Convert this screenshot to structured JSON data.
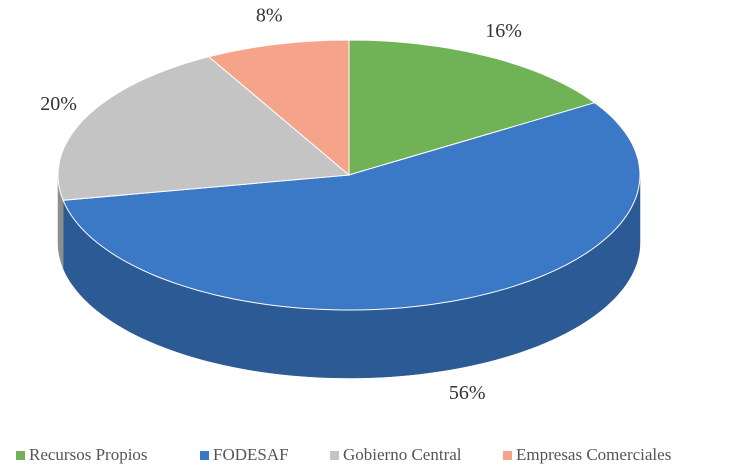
{
  "chart_data": {
    "type": "pie3d",
    "categories": [
      "Recursos Propios",
      "FODESAF",
      "Gobierno Central",
      "Empresas Comerciales"
    ],
    "values": [
      16,
      56,
      20,
      8
    ],
    "value_labels": [
      "16%",
      "56%",
      "20%",
      "8%"
    ],
    "colors": [
      "#6fb356",
      "#3b78c6",
      "#c4c4c4",
      "#f5a48a"
    ],
    "side_colors": [
      "#4f8a3c",
      "#2b5a94",
      "#8e8e8e",
      "#c47a62"
    ]
  }
}
